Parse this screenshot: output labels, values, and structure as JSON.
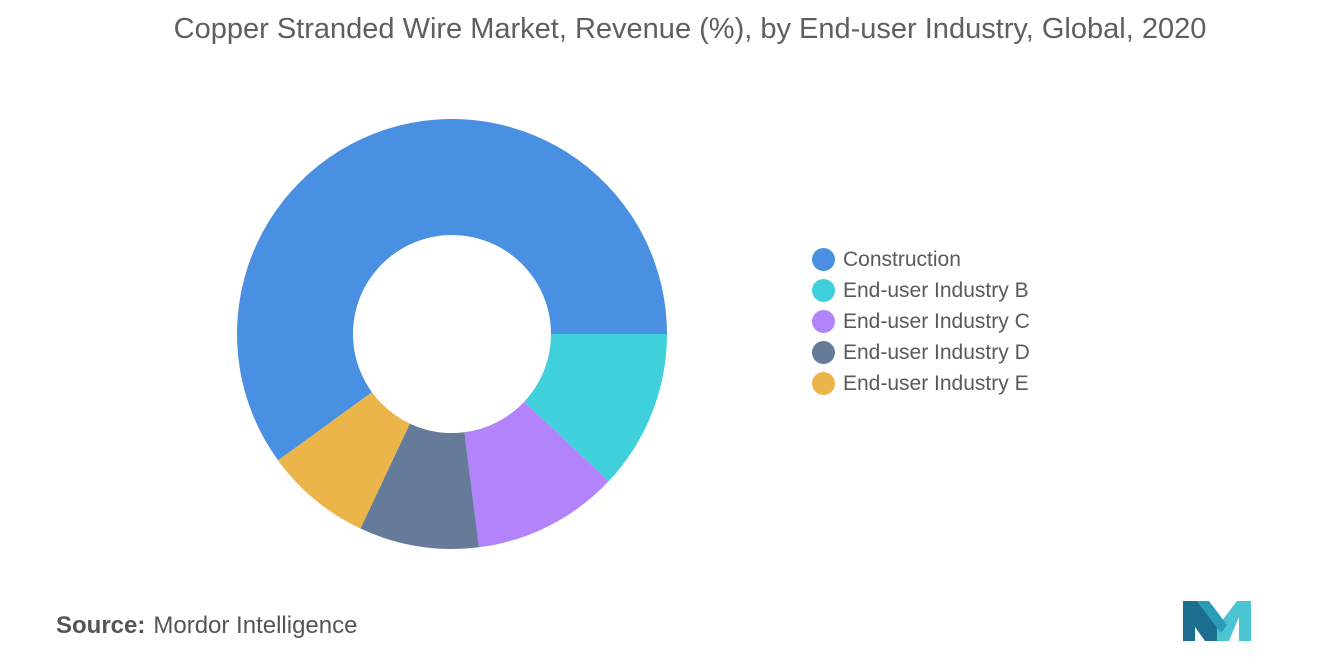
{
  "chart_data": {
    "type": "pie",
    "donut": true,
    "title": "Copper Stranded Wire Market, Revenue (%), by End-user Industry, Global, 2020",
    "legend_position": "right",
    "categories": [
      "Construction",
      "End-user Industry B",
      "End-user Industry C",
      "End-user Industry D",
      "End-user Industry E"
    ],
    "values": [
      60.0,
      12.0,
      11.0,
      9.0,
      8.0
    ],
    "colors": [
      "#4a90e2",
      "#40d0db",
      "#b283fb",
      "#667a99",
      "#ebb54a"
    ]
  },
  "source": {
    "label": "Source:",
    "value": "Mordor Intelligence"
  },
  "logo": {
    "icon": "mordor-intelligence-logo-icon",
    "colors": [
      "#1d6f8f",
      "#4cc5d2"
    ]
  }
}
